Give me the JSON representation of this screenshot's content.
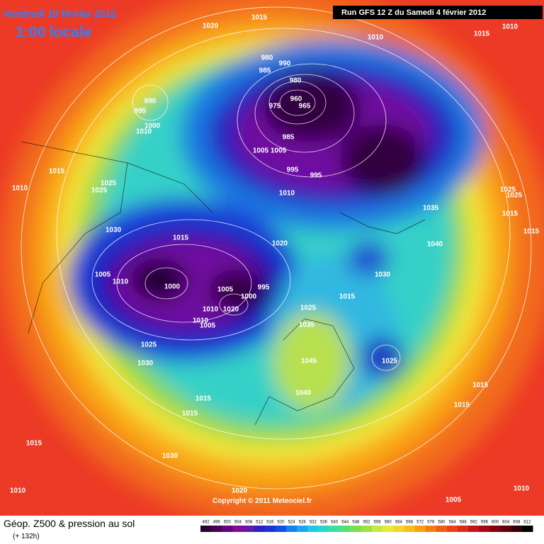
{
  "header": {
    "date": "Vendredi 10 février 2012",
    "time": "1:00 locale",
    "run": "Run GFS 12 Z du Samedi 4 février 2012"
  },
  "copyright": "Copyright © 2011 Meteociel.fr",
  "footer": {
    "title": "Géop. Z500 & pression au sol",
    "lead": "(+ 132h)"
  },
  "colorbar": {
    "labels": [
      492,
      496,
      500,
      504,
      508,
      512,
      516,
      520,
      524,
      528,
      532,
      536,
      540,
      544,
      548,
      552,
      556,
      560,
      564,
      568,
      572,
      576,
      580,
      584,
      588,
      592,
      596,
      600,
      604,
      608,
      612
    ]
  },
  "isobar_labels": [
    "1020",
    "1015",
    "1010",
    "1015",
    "1010",
    "980",
    "990",
    "985",
    "980",
    "990",
    "995",
    "960",
    "975",
    "965",
    "1010",
    "1000",
    "985",
    "1005",
    "1005",
    "995",
    "995",
    "1015",
    "1025",
    "1010",
    "1025",
    "1010",
    "1025",
    "1025",
    "1035",
    "1015",
    "1030",
    "1015",
    "1020",
    "1015",
    "1040",
    "1030",
    "1005",
    "1010",
    "1000",
    "1005",
    "995",
    "1000",
    "1015",
    "1010",
    "1020",
    "1025",
    "1010",
    "1005",
    "1035",
    "1025",
    "1025",
    "1030",
    "1045",
    "1040",
    "1015",
    "1015",
    "1015",
    "1015",
    "1015",
    "1030",
    "1010",
    "1020",
    "1010",
    "1005"
  ]
}
